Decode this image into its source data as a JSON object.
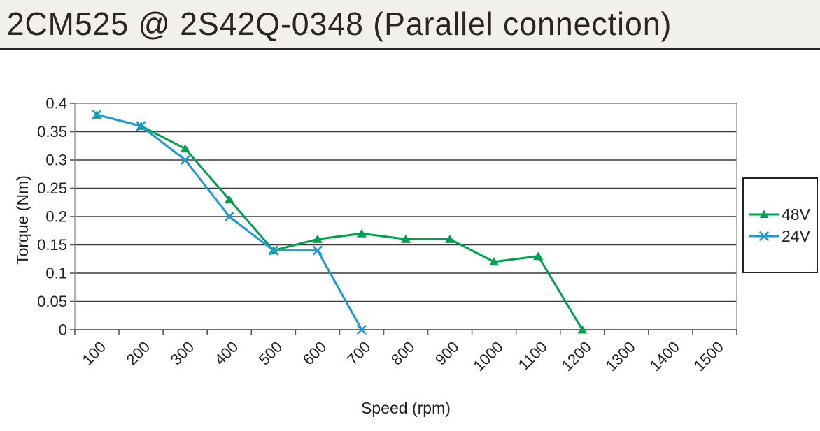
{
  "header": {
    "title": "2CM525 @ 2S42Q-0348 (Parallel connection)"
  },
  "chart_data": {
    "type": "line",
    "title": "2CM525 @ 2S42Q-0348 (Parallel connection)",
    "xlabel": "Speed (rpm)",
    "ylabel": "Torque (Nm)",
    "categories": [
      100,
      200,
      300,
      400,
      500,
      600,
      700,
      800,
      900,
      1000,
      1100,
      1200,
      1300,
      1400,
      1500
    ],
    "ylim": [
      0,
      0.4
    ],
    "y_ticks": [
      0,
      0.05,
      0.1,
      0.15,
      0.2,
      0.25,
      0.3,
      0.35,
      0.4
    ],
    "grid": "horizontal",
    "legend_position": "right",
    "series": [
      {
        "name": "48V",
        "color": "#00a04e",
        "marker": "triangle",
        "x": [
          100,
          200,
          300,
          400,
          500,
          600,
          700,
          800,
          900,
          1000,
          1100,
          1200
        ],
        "values": [
          0.38,
          0.36,
          0.32,
          0.23,
          0.14,
          0.16,
          0.17,
          0.16,
          0.16,
          0.12,
          0.13,
          0
        ]
      },
      {
        "name": "24V",
        "color": "#1f9ad6",
        "marker": "x",
        "x": [
          100,
          200,
          300,
          400,
          500,
          600,
          700
        ],
        "values": [
          0.38,
          0.36,
          0.3,
          0.2,
          0.14,
          0.14,
          0
        ]
      }
    ]
  },
  "colors": {
    "header_bg": "#f2f0ed",
    "header_border": "#29241f",
    "text": "#262220",
    "gridline": "#3a3a3a",
    "plot_border": "#a3a09c",
    "axis": "#595959",
    "legend_border": "#262220"
  }
}
